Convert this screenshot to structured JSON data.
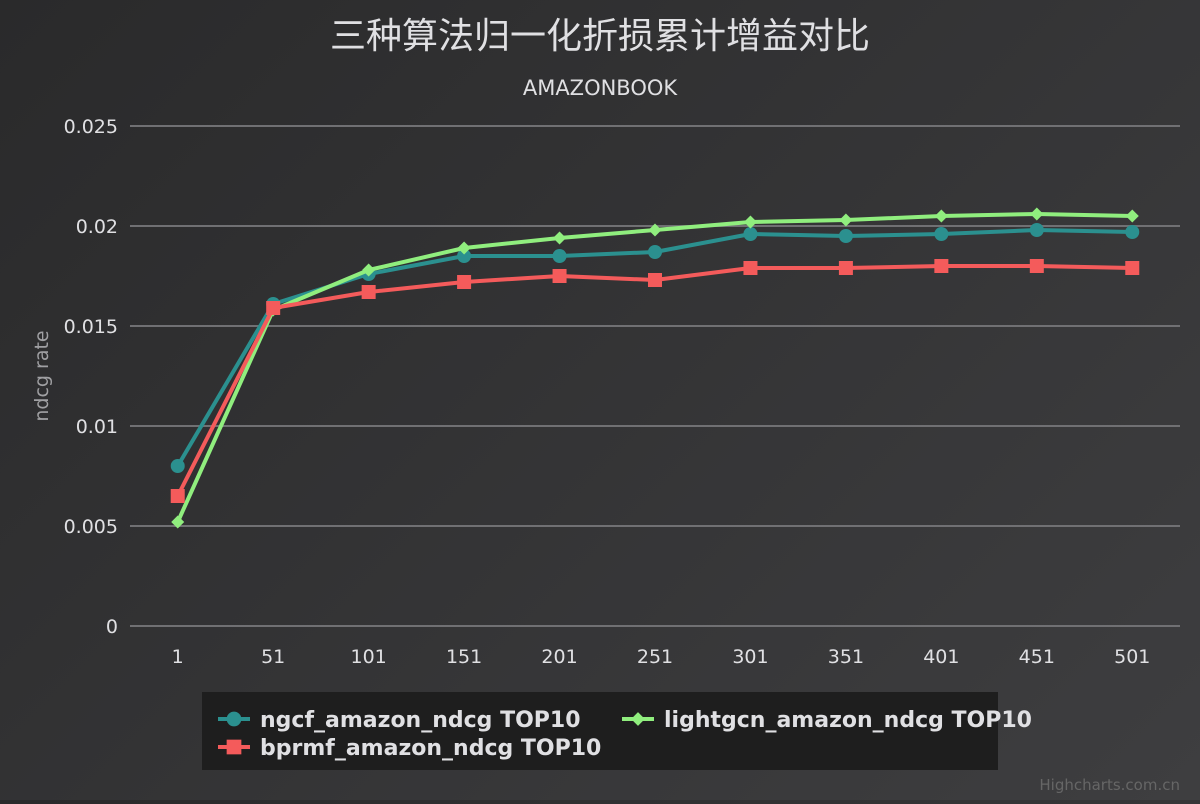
{
  "chart_data": {
    "type": "line",
    "title": "三种算法归一化折损累计增益对比",
    "subtitle": "AMAZONBOOK",
    "xlabel": "",
    "ylabel": "ndcg rate",
    "categories": [
      "1",
      "51",
      "101",
      "151",
      "201",
      "251",
      "301",
      "351",
      "401",
      "451",
      "501"
    ],
    "ylim": [
      0,
      0.025
    ],
    "yticks": [
      0,
      0.005,
      0.01,
      0.015,
      0.02,
      0.025
    ],
    "ytick_labels": [
      "0",
      "0.005",
      "0.01",
      "0.015",
      "0.02",
      "0.025"
    ],
    "grid": true,
    "legend_position": "bottom-center",
    "series": [
      {
        "name": "ngcf_amazon_ndcg TOP10",
        "color": "#2b908f",
        "marker": "circle",
        "values": [
          0.008,
          0.0161,
          0.0176,
          0.0185,
          0.0185,
          0.0187,
          0.0196,
          0.0195,
          0.0196,
          0.0198,
          0.0197
        ]
      },
      {
        "name": "lightgcn_amazon_ndcg TOP10",
        "color": "#90ee7e",
        "marker": "diamond",
        "values": [
          0.0052,
          0.0158,
          0.0178,
          0.0189,
          0.0194,
          0.0198,
          0.0202,
          0.0203,
          0.0205,
          0.0206,
          0.0205
        ]
      },
      {
        "name": "bprmf_amazon_ndcg TOP10",
        "color": "#f45b5b",
        "marker": "square",
        "values": [
          0.0065,
          0.0159,
          0.0167,
          0.0172,
          0.0175,
          0.0173,
          0.0179,
          0.0179,
          0.018,
          0.018,
          0.0179
        ]
      }
    ]
  },
  "credits": "Highcharts.com.cn",
  "colors": {
    "background": "#2a2a2b",
    "legend_background": "#1e1e1e",
    "grid": "#707073",
    "text": "#e0e0e3"
  }
}
